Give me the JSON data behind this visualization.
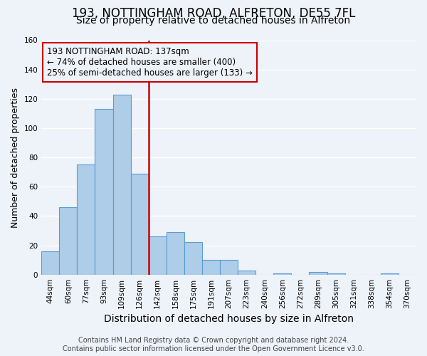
{
  "title": "193, NOTTINGHAM ROAD, ALFRETON, DE55 7FL",
  "subtitle": "Size of property relative to detached houses in Alfreton",
  "xlabel": "Distribution of detached houses by size in Alfreton",
  "ylabel": "Number of detached properties",
  "bar_labels": [
    "44sqm",
    "60sqm",
    "77sqm",
    "93sqm",
    "109sqm",
    "126sqm",
    "142sqm",
    "158sqm",
    "175sqm",
    "191sqm",
    "207sqm",
    "223sqm",
    "240sqm",
    "256sqm",
    "272sqm",
    "289sqm",
    "305sqm",
    "321sqm",
    "338sqm",
    "354sqm",
    "370sqm"
  ],
  "bar_values": [
    16,
    46,
    75,
    113,
    123,
    69,
    26,
    29,
    22,
    10,
    10,
    3,
    0,
    1,
    0,
    2,
    1,
    0,
    0,
    1,
    0
  ],
  "bar_color": "#aecde8",
  "bar_edge_color": "#5b9bd5",
  "vline_x": 6.0,
  "vline_color": "#cc0000",
  "annotation_line1": "193 NOTTINGHAM ROAD: 137sqm",
  "annotation_line2": "← 74% of detached houses are smaller (400)",
  "annotation_line3": "25% of semi-detached houses are larger (133) →",
  "annotation_box_edge_color": "#cc0000",
  "ylim": [
    0,
    160
  ],
  "yticks": [
    0,
    20,
    40,
    60,
    80,
    100,
    120,
    140,
    160
  ],
  "footer_line1": "Contains HM Land Registry data © Crown copyright and database right 2024.",
  "footer_line2": "Contains public sector information licensed under the Open Government Licence v3.0.",
  "title_fontsize": 12,
  "subtitle_fontsize": 10,
  "xlabel_fontsize": 10,
  "ylabel_fontsize": 9,
  "tick_fontsize": 7.5,
  "annotation_fontsize": 8.5,
  "footer_fontsize": 7,
  "background_color": "#eef2f9"
}
